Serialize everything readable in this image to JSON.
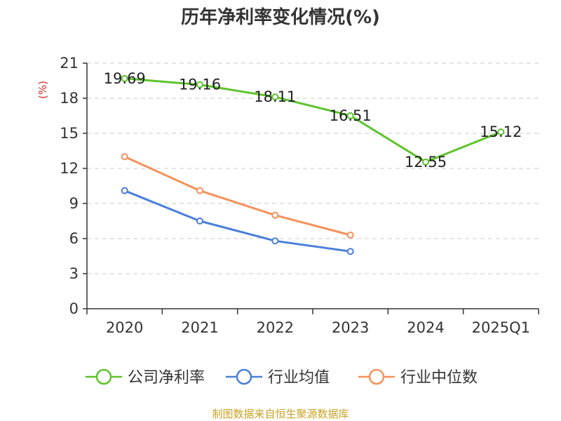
{
  "chart_data": {
    "type": "line",
    "title": "历年净利率变化情况(%)",
    "ylabel": "(%)",
    "xlabel": "",
    "categories": [
      "2020",
      "2021",
      "2022",
      "2023",
      "2024",
      "2025Q1"
    ],
    "ylim": [
      0,
      21
    ],
    "yticks": [
      0,
      3,
      6,
      9,
      12,
      15,
      18,
      21
    ],
    "grid": true,
    "legend_position": "bottom",
    "series": [
      {
        "name": "公司净利率",
        "color": "#5ec42c",
        "values": [
          19.69,
          19.16,
          18.11,
          16.51,
          12.55,
          15.12
        ],
        "show_labels": true,
        "labels": [
          "19.69",
          "19.16",
          "18.11",
          "16.51",
          "12.55",
          "15.12"
        ]
      },
      {
        "name": "行业均值",
        "color": "#4a7fd9",
        "values": [
          10.1,
          7.5,
          5.8,
          4.9,
          null,
          null
        ],
        "show_labels": false
      },
      {
        "name": "行业中位数",
        "color": "#f5915a",
        "values": [
          13.0,
          10.1,
          8.0,
          6.3,
          null,
          null
        ],
        "show_labels": false
      }
    ]
  },
  "source": "制图数据来自恒生聚源数据库"
}
